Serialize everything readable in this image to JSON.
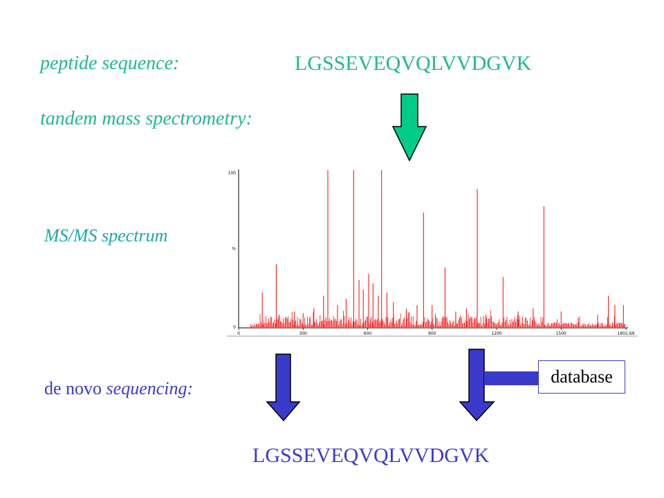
{
  "labels": {
    "peptide": "peptide sequence:",
    "sequence_top": "LGSSEVEQVQLVVDGVK",
    "tandem": "tandem mass spectrometry:",
    "msms": "MS/MS spectrum",
    "denovo_plain": "de novo",
    "denovo_italic": "sequencing:",
    "sequence_bottom": "LGSSEVEQVQLVVDGVK",
    "database": "database"
  },
  "colors": {
    "teal": "#1fb890",
    "blue": "#3a3acb",
    "spectrum": "#ff0000"
  },
  "chart_data": {
    "type": "bar",
    "xlim": [
      0,
      1801.69
    ],
    "ylim": [
      0,
      100
    ],
    "x_ticks": [
      "0",
      "300",
      "600",
      "900",
      "1200",
      "1500",
      "1801.69"
    ],
    "y_ticks": [
      "0",
      "%",
      "100"
    ],
    "peaks": [
      {
        "x": 110,
        "y": 22
      },
      {
        "x": 175,
        "y": 40
      },
      {
        "x": 190,
        "y": 8
      },
      {
        "x": 260,
        "y": 10
      },
      {
        "x": 300,
        "y": 9
      },
      {
        "x": 350,
        "y": 12
      },
      {
        "x": 395,
        "y": 20
      },
      {
        "x": 415,
        "y": 100
      },
      {
        "x": 460,
        "y": 14
      },
      {
        "x": 500,
        "y": 18
      },
      {
        "x": 535,
        "y": 100
      },
      {
        "x": 560,
        "y": 30
      },
      {
        "x": 580,
        "y": 24
      },
      {
        "x": 605,
        "y": 34
      },
      {
        "x": 625,
        "y": 28
      },
      {
        "x": 650,
        "y": 20
      },
      {
        "x": 665,
        "y": 100
      },
      {
        "x": 690,
        "y": 22
      },
      {
        "x": 720,
        "y": 16
      },
      {
        "x": 780,
        "y": 12
      },
      {
        "x": 830,
        "y": 14
      },
      {
        "x": 860,
        "y": 73
      },
      {
        "x": 900,
        "y": 14
      },
      {
        "x": 960,
        "y": 38
      },
      {
        "x": 1010,
        "y": 10
      },
      {
        "x": 1060,
        "y": 12
      },
      {
        "x": 1110,
        "y": 88
      },
      {
        "x": 1150,
        "y": 8
      },
      {
        "x": 1230,
        "y": 32
      },
      {
        "x": 1300,
        "y": 10
      },
      {
        "x": 1370,
        "y": 12
      },
      {
        "x": 1420,
        "y": 77
      },
      {
        "x": 1500,
        "y": 10
      },
      {
        "x": 1580,
        "y": 6
      },
      {
        "x": 1670,
        "y": 8
      },
      {
        "x": 1720,
        "y": 20
      },
      {
        "x": 1750,
        "y": 14
      },
      {
        "x": 1790,
        "y": 14
      }
    ]
  }
}
